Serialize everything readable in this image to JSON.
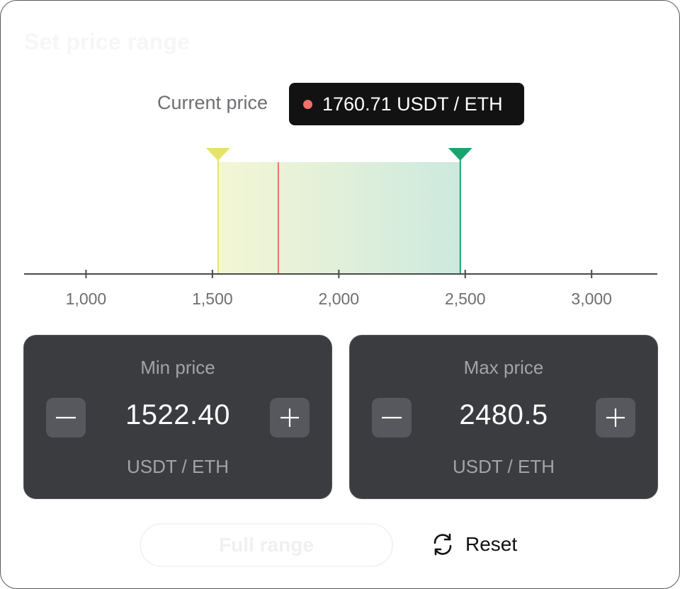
{
  "title": "Set price range",
  "current_price": {
    "label": "Current price",
    "value": "1760.71 USDT / ETH",
    "dot_color": "#f2706a"
  },
  "chart_data": {
    "type": "range",
    "x_ticks": [
      1000,
      1500,
      2000,
      2500,
      3000
    ],
    "x_tick_labels": [
      "1,000",
      "1,500",
      "2,000",
      "2,500",
      "3,000"
    ],
    "xlim": [
      755,
      3260
    ],
    "range_min": 1522.4,
    "range_max": 2480.5,
    "current": 1760.71,
    "colors": {
      "min_handle": "#e4e46a",
      "max_handle": "#1aa36f",
      "current_line": "#f2706a",
      "axis": "#4a4a4a"
    }
  },
  "min_price": {
    "label": "Min price",
    "value": "1522.40",
    "unit": "USDT / ETH",
    "decrement_icon": "minus-icon",
    "increment_icon": "plus-icon"
  },
  "max_price": {
    "label": "Max price",
    "value": "2480.5",
    "unit": "USDT / ETH",
    "decrement_icon": "minus-icon",
    "increment_icon": "plus-icon"
  },
  "actions": {
    "full_range_label": "Full range",
    "reset_label": "Reset",
    "reset_icon": "refresh-icon"
  }
}
